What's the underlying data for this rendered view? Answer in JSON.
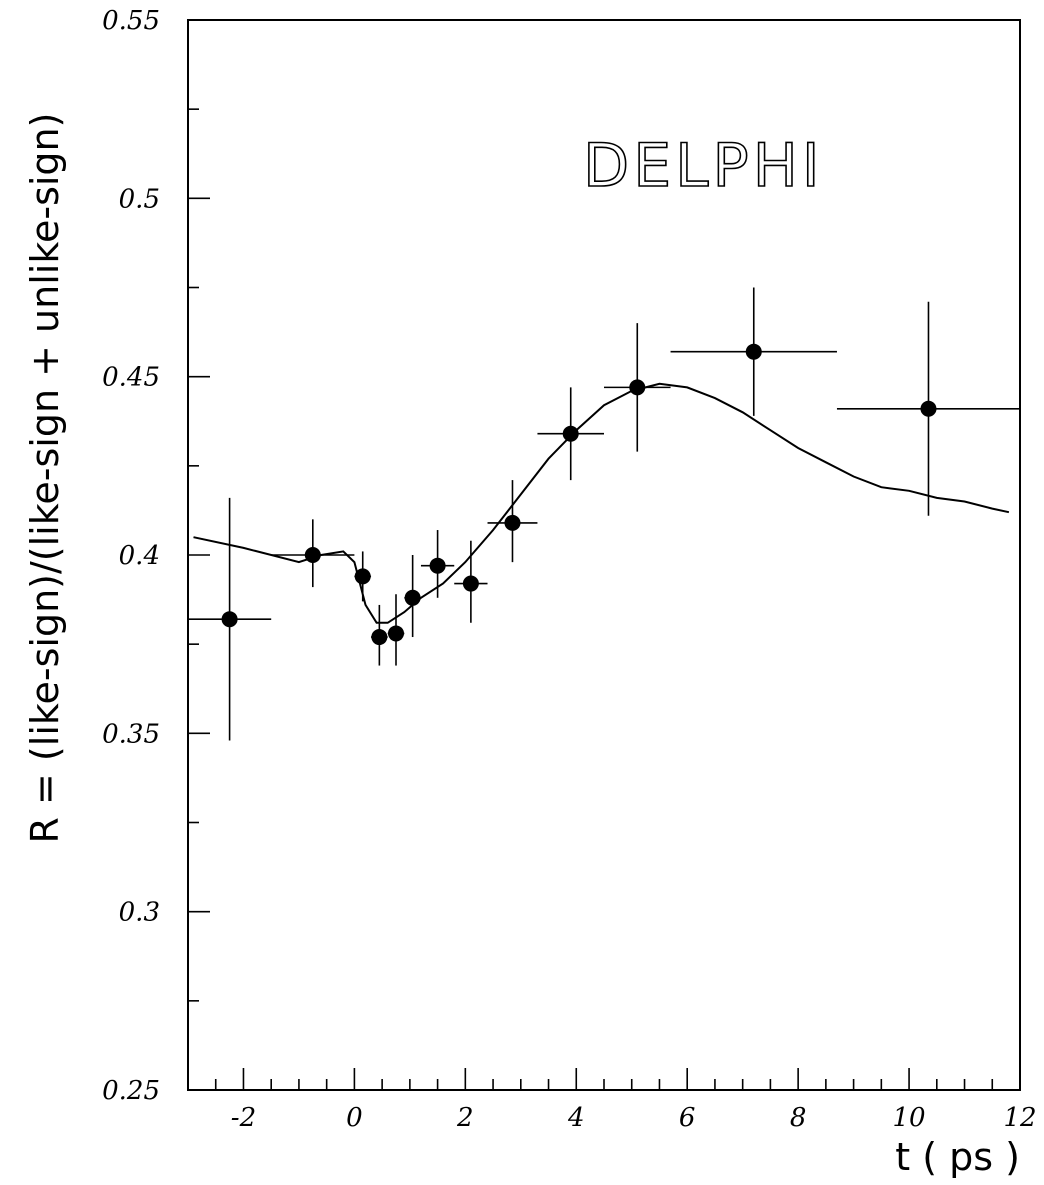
{
  "chart_data": {
    "type": "scatter",
    "title": "",
    "annotation": "DELPHI",
    "xlabel": "t ( ps )",
    "ylabel": "R = (like-sign)/(like-sign + unlike-sign)",
    "xlim": [
      -3,
      12
    ],
    "ylim": [
      0.25,
      0.55
    ],
    "x_ticks": [
      -2,
      0,
      2,
      4,
      6,
      8,
      10,
      12
    ],
    "y_ticks": [
      0.25,
      0.3,
      0.35,
      0.4,
      0.45,
      0.5,
      0.55
    ],
    "x_minor_step": 0.5,
    "y_minor_step": 0.025,
    "grid": false,
    "legend": "none",
    "series": [
      {
        "kind": "points_with_errorbars",
        "points": [
          {
            "x": -2.25,
            "y": 0.382,
            "xlo": -3.0,
            "xhi": -1.5,
            "ylo": 0.348,
            "yhi": 0.416
          },
          {
            "x": -0.75,
            "y": 0.4,
            "xlo": -1.5,
            "xhi": 0.0,
            "ylo": 0.391,
            "yhi": 0.41
          },
          {
            "x": 0.15,
            "y": 0.394,
            "xlo": 0.0,
            "xhi": 0.3,
            "ylo": 0.387,
            "yhi": 0.401
          },
          {
            "x": 0.45,
            "y": 0.377,
            "xlo": 0.3,
            "xhi": 0.6,
            "ylo": 0.369,
            "yhi": 0.386
          },
          {
            "x": 0.75,
            "y": 0.378,
            "xlo": 0.6,
            "xhi": 0.9,
            "ylo": 0.369,
            "yhi": 0.389
          },
          {
            "x": 1.05,
            "y": 0.388,
            "xlo": 0.9,
            "xhi": 1.2,
            "ylo": 0.377,
            "yhi": 0.4
          },
          {
            "x": 1.5,
            "y": 0.397,
            "xlo": 1.2,
            "xhi": 1.8,
            "ylo": 0.388,
            "yhi": 0.407
          },
          {
            "x": 2.1,
            "y": 0.392,
            "xlo": 1.8,
            "xhi": 2.4,
            "ylo": 0.381,
            "yhi": 0.404
          },
          {
            "x": 2.85,
            "y": 0.409,
            "xlo": 2.4,
            "xhi": 3.3,
            "ylo": 0.398,
            "yhi": 0.421
          },
          {
            "x": 3.9,
            "y": 0.434,
            "xlo": 3.3,
            "xhi": 4.5,
            "ylo": 0.421,
            "yhi": 0.447
          },
          {
            "x": 5.1,
            "y": 0.447,
            "xlo": 4.5,
            "xhi": 5.7,
            "ylo": 0.429,
            "yhi": 0.465
          },
          {
            "x": 7.2,
            "y": 0.457,
            "xlo": 5.7,
            "xhi": 8.7,
            "ylo": 0.439,
            "yhi": 0.475
          },
          {
            "x": 10.35,
            "y": 0.441,
            "xlo": 8.7,
            "xhi": 12.0,
            "ylo": 0.411,
            "yhi": 0.471
          }
        ]
      },
      {
        "kind": "fit_curve",
        "x": [
          -2.9,
          -2.0,
          -1.0,
          -0.6,
          -0.2,
          0.0,
          0.2,
          0.4,
          0.6,
          0.9,
          1.2,
          1.6,
          2.0,
          2.5,
          3.0,
          3.5,
          4.0,
          4.5,
          5.0,
          5.5,
          6.0,
          6.5,
          7.0,
          7.5,
          8.0,
          8.5,
          9.0,
          9.5,
          10.0,
          10.5,
          11.0,
          11.5,
          11.8
        ],
        "y": [
          0.405,
          0.402,
          0.398,
          0.4,
          0.401,
          0.398,
          0.386,
          0.381,
          0.381,
          0.384,
          0.388,
          0.392,
          0.398,
          0.407,
          0.417,
          0.427,
          0.435,
          0.442,
          0.446,
          0.448,
          0.447,
          0.444,
          0.44,
          0.435,
          0.43,
          0.426,
          0.422,
          0.419,
          0.418,
          0.416,
          0.415,
          0.413,
          0.412
        ]
      }
    ]
  }
}
